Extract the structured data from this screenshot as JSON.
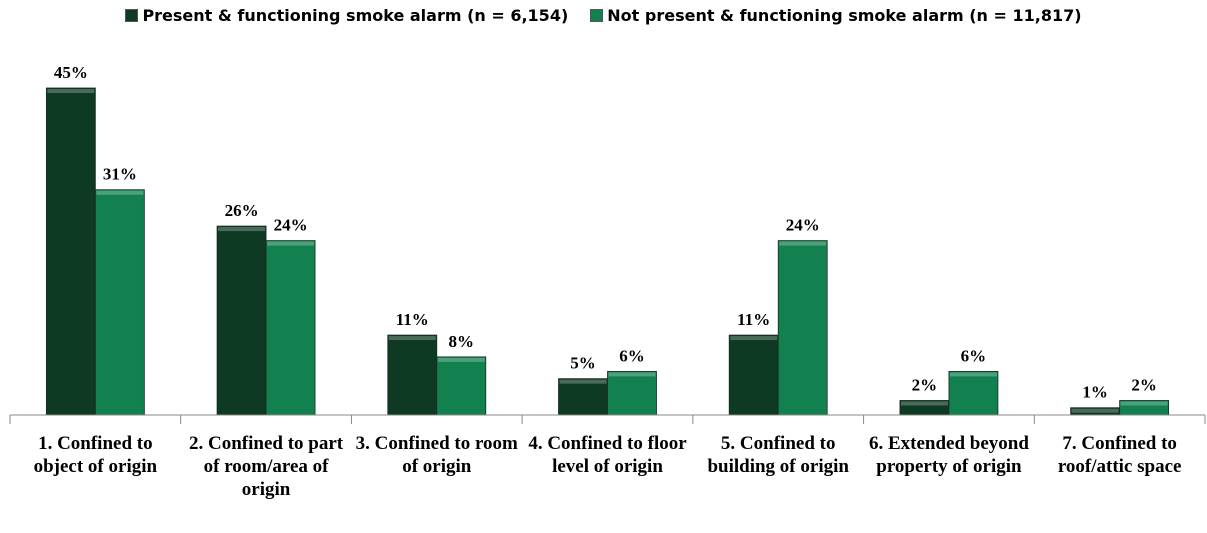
{
  "chart_data": {
    "type": "bar",
    "categories": [
      "1. Confined to object of origin",
      "2. Confined to part of room/area of origin",
      "3. Confined to room of origin",
      "4. Confined to floor level of origin",
      "5. Confined to building of origin",
      "6. Extended beyond property of origin",
      "7. Confined to roof/attic space"
    ],
    "series": [
      {
        "name": "Present & functioning smoke alarm (n = 6,154)",
        "color": "#0e3a24",
        "values": [
          45,
          26,
          11,
          5,
          11,
          2,
          1
        ],
        "value_labels": [
          "45%",
          "26%",
          "11%",
          "5%",
          "11%",
          "2%",
          "1%"
        ]
      },
      {
        "name": "Not present & functioning smoke alarm (n = 11,817)",
        "color": "#12814f",
        "values": [
          31,
          24,
          8,
          6,
          24,
          6,
          2
        ],
        "value_labels": [
          "31%",
          "24%",
          "8%",
          "6%",
          "24%",
          "6%",
          "2%"
        ]
      }
    ],
    "legend": "top"
  }
}
